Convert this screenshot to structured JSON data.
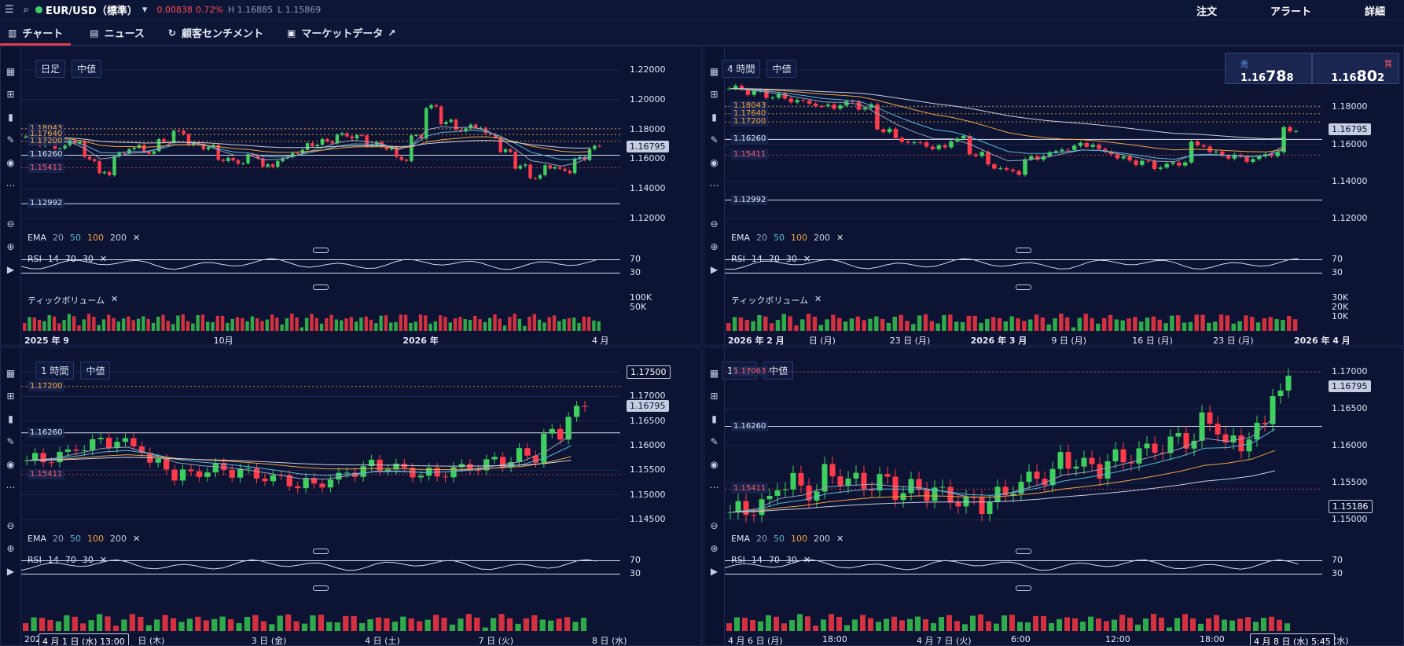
{
  "top": {
    "symbol": "EUR/USD（標準）",
    "change": "0.00838",
    "change_pct": "0.72%",
    "high": "H 1.16885",
    "low": "L 1.15869",
    "right": [
      "注文",
      "アラート",
      "詳細"
    ],
    "status_color": "#3ecf6a"
  },
  "tabs": [
    "チャート",
    "ニュース",
    "顧客センチメント",
    "マーケットデータ"
  ],
  "quote": {
    "sell_label": "売",
    "sell_price_prefix": "1.16",
    "sell_price_big": "78",
    "sell_price_small": "8",
    "buy_label": "買",
    "buy_price_prefix": "1.16",
    "buy_price_big": "80",
    "buy_price_small": "2"
  },
  "panels": [
    {
      "timeframe": "日足",
      "price_type": "中値",
      "current_price": "1.16795",
      "y_ticks": [
        "1.22000",
        "1.20000",
        "1.18000",
        "1.16000",
        "1.14000",
        "1.12000"
      ],
      "levels": [
        {
          "v": "1.18043",
          "c": "or"
        },
        {
          "v": "1.17640",
          "c": "or"
        },
        {
          "v": "1.17200",
          "c": "or"
        },
        {
          "v": "1.16260",
          "c": ""
        },
        {
          "v": "1.15411",
          "c": "rd"
        },
        {
          "v": "1.12992",
          "c": ""
        }
      ],
      "ema": {
        "label": "EMA",
        "p": [
          "20",
          "50",
          "100",
          "200"
        ]
      },
      "rsi": {
        "label": "RSI",
        "p": [
          "14",
          "70",
          "30"
        ],
        "ticks": [
          "70",
          "30"
        ]
      },
      "vol": {
        "label": "ティックボリューム",
        "ticks": [
          "100K",
          "50K"
        ]
      },
      "x_labels": [
        "2025 年 9",
        "10月",
        "2026 年",
        "4 月"
      ],
      "series": [
        1.175,
        1.17,
        1.168,
        1.172,
        1.16,
        1.15,
        1.163,
        1.168,
        1.165,
        1.172,
        1.178,
        1.17,
        1.168,
        1.16,
        1.158,
        1.162,
        1.155,
        1.16,
        1.165,
        1.17,
        1.172,
        1.176,
        1.175,
        1.17,
        1.168,
        1.16,
        1.175,
        1.195,
        1.185,
        1.18,
        1.182,
        1.176,
        1.165,
        1.155,
        1.148,
        1.155,
        1.152,
        1.16,
        1.168
      ]
    },
    {
      "timeframe": "4 時間",
      "price_type": "中値",
      "current_price": "1.16795",
      "y_ticks": [
        "1.20000",
        "1.18000",
        "1.16000",
        "1.14000",
        "1.12000"
      ],
      "levels": [
        {
          "v": "1.18043",
          "c": "or"
        },
        {
          "v": "1.17640",
          "c": "or"
        },
        {
          "v": "1.17200",
          "c": "or"
        },
        {
          "v": "1.16260",
          "c": ""
        },
        {
          "v": "1.15411",
          "c": "rd"
        },
        {
          "v": "1.12992",
          "c": ""
        }
      ],
      "ema": {
        "label": "EMA",
        "p": [
          "20",
          "50",
          "100",
          "200"
        ]
      },
      "rsi": {
        "label": "RSI",
        "p": [
          "14",
          "70",
          "30"
        ],
        "ticks": [
          "70",
          "30"
        ]
      },
      "vol": {
        "label": "ティックボリューム",
        "ticks": [
          "30K",
          "20K",
          "10K"
        ]
      },
      "x_labels": [
        "2026 年 2 月",
        "日 (月)",
        "23 日 (月)",
        "2026 年 3 月",
        "9 日 (月)",
        "16 日 (月)",
        "23 日 (月)",
        "2026 年 4 月"
      ],
      "series": [
        1.19,
        1.188,
        1.186,
        1.184,
        1.182,
        1.18,
        1.182,
        1.18,
        1.168,
        1.162,
        1.16,
        1.158,
        1.163,
        1.155,
        1.148,
        1.145,
        1.152,
        1.155,
        1.158,
        1.16,
        1.156,
        1.152,
        1.15,
        1.148,
        1.15,
        1.16,
        1.155,
        1.153,
        1.152,
        1.155,
        1.168
      ]
    },
    {
      "timeframe": "1 時間",
      "price_type": "中値",
      "current_price": "1.16795",
      "marker": "1.17500",
      "y_ticks": [
        "1.17500",
        "1.17000",
        "1.16500",
        "1.16000",
        "1.15500",
        "1.15000",
        "1.14500"
      ],
      "levels": [
        {
          "v": "1.17200",
          "c": "or"
        },
        {
          "v": "1.16260",
          "c": ""
        },
        {
          "v": "1.15411",
          "c": "rd"
        }
      ],
      "ema": {
        "label": "EMA",
        "p": [
          "20",
          "50",
          "100",
          "200"
        ]
      },
      "rsi": {
        "label": "RSI",
        "p": [
          "14",
          "70",
          "30"
        ],
        "ticks": [
          "70",
          "30"
        ]
      },
      "crosshair_time": "4 月 1 日 (水) 13:00",
      "x_labels": [
        "202",
        "日 (木)",
        "3 日 (金)",
        "4 日 (土)",
        "7 日 (火)",
        "8 日 (水)"
      ],
      "series": [
        1.157,
        1.158,
        1.16,
        1.161,
        1.16,
        1.156,
        1.154,
        1.155,
        1.155,
        1.154,
        1.153,
        1.152,
        1.153,
        1.155,
        1.156,
        1.155,
        1.154,
        1.155,
        1.156,
        1.157,
        1.158,
        1.162,
        1.167
      ]
    },
    {
      "timeframe": "15 分",
      "price_type": "中値",
      "current_price": "1.16795",
      "marker": "1.15186",
      "y_ticks": [
        "1.17000",
        "1.16500",
        "1.16000",
        "1.15500",
        "1.15000"
      ],
      "levels": [
        {
          "v": "1.17063",
          "c": "rd"
        },
        {
          "v": "1.16260",
          "c": ""
        },
        {
          "v": "1.15411",
          "c": "rd"
        }
      ],
      "ema": {
        "label": "EMA",
        "p": [
          "20",
          "50",
          "100",
          "200"
        ]
      },
      "rsi": {
        "label": "RSI",
        "p": [
          "14",
          "70",
          "30"
        ],
        "ticks": [
          "70",
          "30"
        ]
      },
      "crosshair_time": "4 月 8 日 (水) 5:45",
      "x_labels": [
        "4 月 6 日 (月)",
        "18:00",
        "4 月 7 日 (火)",
        "6:00",
        "12:00",
        "18:00",
        "4 月 8 日 (水)"
      ],
      "series": [
        1.151,
        1.152,
        1.155,
        1.154,
        1.156,
        1.155,
        1.155,
        1.154,
        1.154,
        1.153,
        1.152,
        1.153,
        1.155,
        1.156,
        1.158,
        1.157,
        1.158,
        1.159,
        1.16,
        1.161,
        1.163,
        1.16,
        1.162,
        1.168
      ]
    }
  ]
}
